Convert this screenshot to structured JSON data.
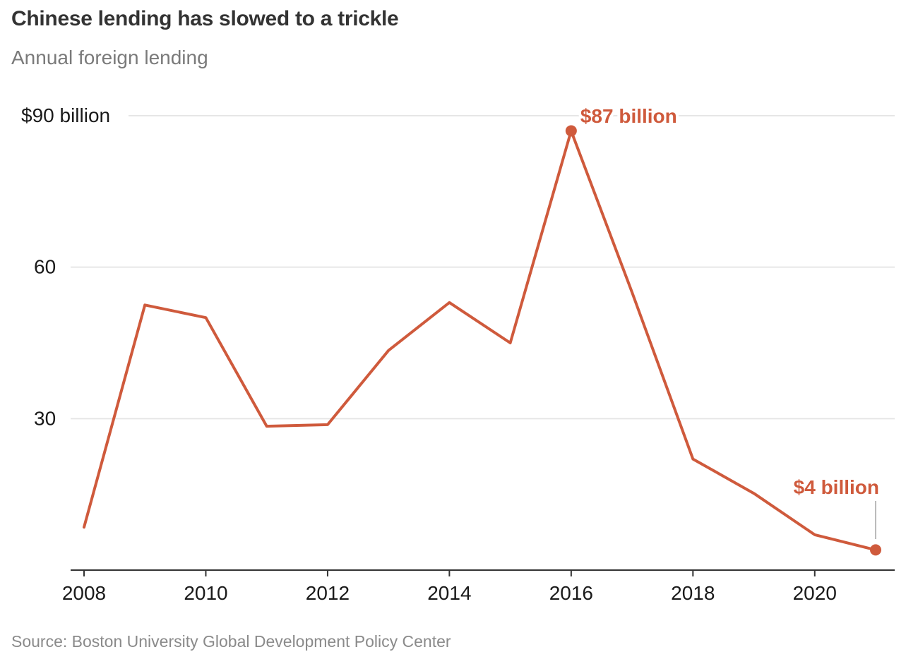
{
  "title": "Chinese lending has slowed to a trickle",
  "subtitle": "Annual foreign lending",
  "source": "Source: Boston University Global Development Policy Center",
  "colors": {
    "line": "#cf5a3c",
    "grid": "#e6e6e6",
    "axis": "#333333"
  },
  "chart_data": {
    "type": "line",
    "title": "Chinese lending has slowed to a trickle",
    "subtitle": "Annual foreign lending",
    "ylim": [
      0,
      90
    ],
    "xlim": [
      2008,
      2021
    ],
    "grid": true,
    "y_ticks": [
      {
        "value": 90,
        "label": "$90 billion"
      },
      {
        "value": 60,
        "label": "60"
      },
      {
        "value": 30,
        "label": "30"
      }
    ],
    "x_ticks": [
      {
        "value": 2008,
        "label": "2008"
      },
      {
        "value": 2010,
        "label": "2010"
      },
      {
        "value": 2012,
        "label": "2012"
      },
      {
        "value": 2014,
        "label": "2014"
      },
      {
        "value": 2016,
        "label": "2016"
      },
      {
        "value": 2018,
        "label": "2018"
      },
      {
        "value": 2020,
        "label": "2020"
      }
    ],
    "series": [
      {
        "x": [
          2008,
          2009,
          2010,
          2011,
          2012,
          2013,
          2014,
          2015,
          2016,
          2017,
          2018,
          2019,
          2020,
          2021
        ],
        "values": [
          8.5,
          52.5,
          50,
          28.5,
          28.8,
          43.5,
          53,
          45,
          87,
          55,
          22,
          15.2,
          7,
          4
        ]
      }
    ],
    "annotations": [
      {
        "x": 2016,
        "y": 87,
        "text": "$87 billion"
      },
      {
        "x": 2021,
        "y": 4,
        "text": "$4 billion"
      }
    ]
  }
}
